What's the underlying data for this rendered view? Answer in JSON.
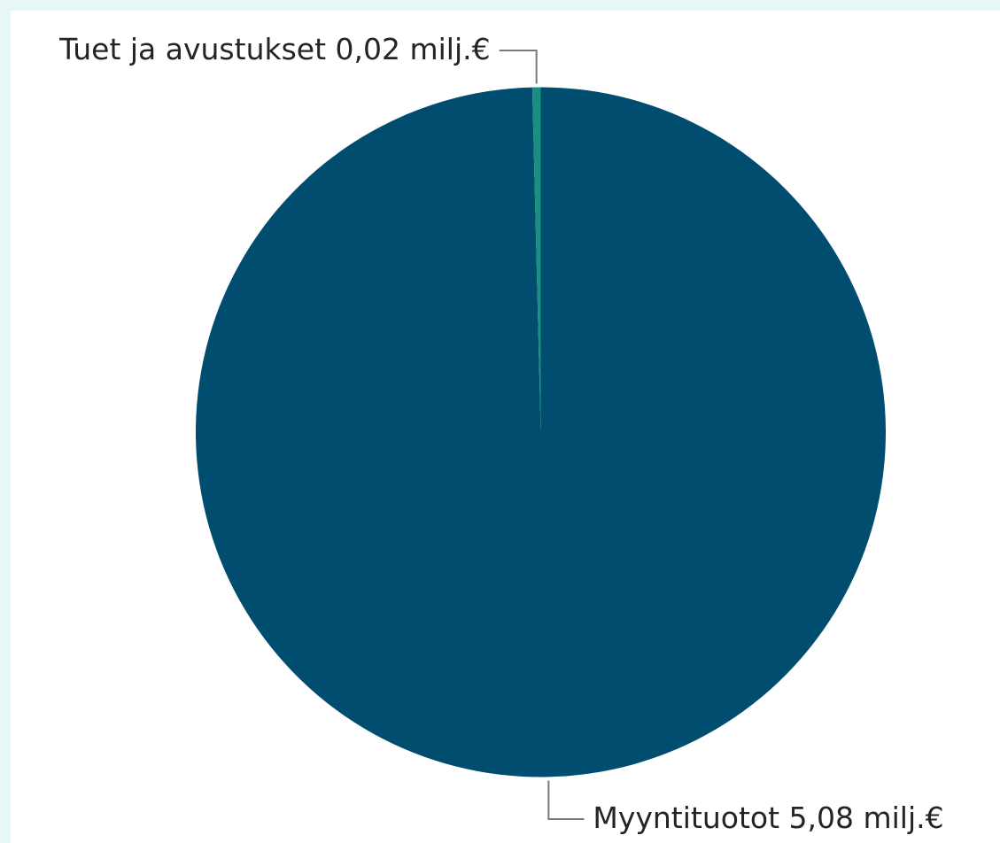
{
  "chart_data": {
    "type": "pie",
    "categories": [
      "Myyntituotot",
      "Tuet ja avustukset"
    ],
    "values": [
      5.08,
      0.02
    ],
    "value_labels": [
      "5,08 milj.€",
      "0,02 milj.€"
    ],
    "colors": [
      "#004d70",
      "#1b8f7d"
    ]
  }
}
